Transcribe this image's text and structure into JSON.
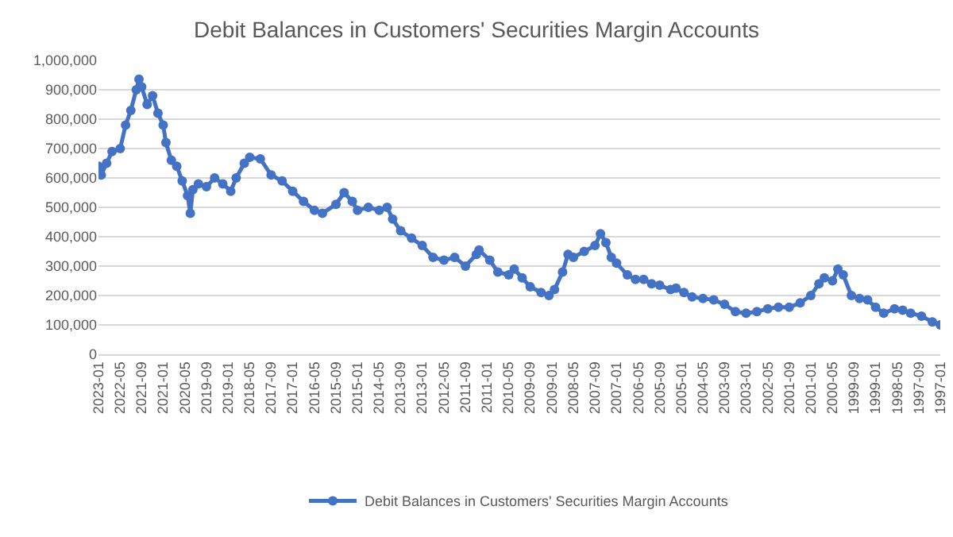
{
  "chart_data": {
    "type": "line",
    "title": "Debit Balances in Customers' Securities Margin Accounts",
    "x": [
      "2023-01",
      "2022-12",
      "2022-10",
      "2022-08",
      "2022-05",
      "2022-03",
      "2022-01",
      "2021-11",
      "2021-10",
      "2021-09",
      "2021-07",
      "2021-05",
      "2021-03",
      "2021-01",
      "2020-12",
      "2020-10",
      "2020-08",
      "2020-06",
      "2020-04",
      "2020-03",
      "2020-02",
      "2019-12",
      "2019-09",
      "2019-06",
      "2019-03",
      "2018-12",
      "2018-10",
      "2018-07",
      "2018-05",
      "2018-01",
      "2017-09",
      "2017-05",
      "2017-01",
      "2016-09",
      "2016-05",
      "2016-02",
      "2015-09",
      "2015-06",
      "2015-03",
      "2015-01",
      "2014-09",
      "2014-05",
      "2014-02",
      "2013-12",
      "2013-09",
      "2013-05",
      "2013-01",
      "2012-09",
      "2012-05",
      "2012-01",
      "2011-09",
      "2011-05",
      "2011-04",
      "2010-12",
      "2010-09",
      "2010-05",
      "2010-03",
      "2009-12",
      "2009-09",
      "2009-05",
      "2009-02",
      "2008-12",
      "2008-09",
      "2008-07",
      "2008-05",
      "2008-01",
      "2007-09",
      "2007-07",
      "2007-05",
      "2007-03",
      "2007-01",
      "2006-09",
      "2006-06",
      "2006-03",
      "2005-12",
      "2005-09",
      "2005-05",
      "2005-03",
      "2004-12",
      "2004-09",
      "2004-05",
      "2004-01",
      "2003-09",
      "2003-05",
      "2003-01",
      "2002-09",
      "2002-05",
      "2002-01",
      "2001-09",
      "2001-05",
      "2001-01",
      "2000-10",
      "2000-08",
      "2000-05",
      "2000-03",
      "2000-01",
      "1999-10",
      "1999-07",
      "1999-04",
      "1999-01",
      "1998-10",
      "1998-06",
      "1998-03",
      "1997-12",
      "1997-08",
      "1997-04",
      "1997-01"
    ],
    "series": [
      {
        "name": "Debit Balances in Customers' Securities Margin Accounts",
        "color": "#4472c4",
        "values": [
          640000,
          610000,
          650000,
          690000,
          700000,
          780000,
          830000,
          900000,
          936000,
          910000,
          850000,
          880000,
          820000,
          780000,
          720000,
          660000,
          640000,
          590000,
          540000,
          480000,
          560000,
          580000,
          570000,
          600000,
          580000,
          555000,
          600000,
          650000,
          670000,
          665000,
          610000,
          590000,
          555000,
          520000,
          490000,
          480000,
          510000,
          550000,
          520000,
          490000,
          500000,
          490000,
          500000,
          460000,
          420000,
          395000,
          370000,
          330000,
          320000,
          330000,
          300000,
          340000,
          355000,
          320000,
          280000,
          270000,
          290000,
          260000,
          230000,
          210000,
          200000,
          220000,
          280000,
          340000,
          330000,
          350000,
          370000,
          410000,
          380000,
          330000,
          310000,
          270000,
          255000,
          255000,
          240000,
          235000,
          220000,
          225000,
          210000,
          195000,
          190000,
          185000,
          170000,
          145000,
          140000,
          145000,
          155000,
          160000,
          160000,
          175000,
          200000,
          240000,
          260000,
          250000,
          290000,
          270000,
          200000,
          190000,
          185000,
          160000,
          140000,
          155000,
          150000,
          140000,
          130000,
          110000,
          100000
        ]
      }
    ],
    "xlim": [
      "2023-01",
      "1997-01"
    ],
    "xticks": [
      "2023-01",
      "2022-05",
      "2021-09",
      "2021-01",
      "2020-05",
      "2019-09",
      "2019-01",
      "2018-05",
      "2017-09",
      "2017-01",
      "2016-05",
      "2015-09",
      "2015-01",
      "2014-05",
      "2013-09",
      "2013-01",
      "2012-05",
      "2011-09",
      "2011-01",
      "2010-05",
      "2009-09",
      "2009-01",
      "2008-05",
      "2007-09",
      "2007-01",
      "2006-05",
      "2005-09",
      "2005-01",
      "2004-05",
      "2003-09",
      "2003-01",
      "2002-05",
      "2001-09",
      "2001-01",
      "2000-05",
      "1999-09",
      "1999-01",
      "1998-05",
      "1997-09",
      "1997-01"
    ],
    "ylim": [
      0,
      1000000
    ],
    "yticks": [
      0,
      {
        "value": 100000,
        "label": "100,000"
      },
      {
        "value": 200000,
        "label": "200,000"
      },
      {
        "value": 300000,
        "label": "300,000"
      },
      {
        "value": 400000,
        "label": "400,000"
      },
      {
        "value": 500000,
        "label": "500,000"
      },
      {
        "value": 600000,
        "label": "600,000"
      },
      {
        "value": 700000,
        "label": "700,000"
      },
      {
        "value": 800000,
        "label": "800,000"
      },
      {
        "value": 900000,
        "label": "900,000"
      },
      {
        "value": 1000000,
        "label": "1,000,000"
      }
    ],
    "grid": "y",
    "legend": "bottom",
    "marker": "circle",
    "line_style": "solid"
  }
}
